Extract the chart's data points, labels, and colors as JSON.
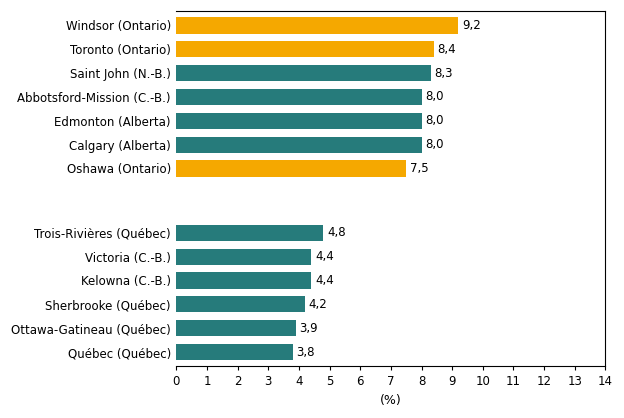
{
  "categories": [
    "Québec (Québec)",
    "Ottawa-Gatineau (Québec)",
    "Sherbrooke (Québec)",
    "Kelowna (C.-B.)",
    "Victoria (C.-B.)",
    "Trois-Rivières (Québec)",
    "",
    "Oshawa (Ontario)",
    "Calgary (Alberta)",
    "Edmonton (Alberta)",
    "Abbotsford-Mission (C.-B.)",
    "Saint John (N.-B.)",
    "Toronto (Ontario)",
    "Windsor (Ontario)"
  ],
  "values": [
    3.8,
    3.9,
    4.2,
    4.4,
    4.4,
    4.8,
    0,
    7.5,
    8.0,
    8.0,
    8.0,
    8.3,
    8.4,
    9.2
  ],
  "colors": [
    "#267b7b",
    "#267b7b",
    "#267b7b",
    "#267b7b",
    "#267b7b",
    "#267b7b",
    "#ffffff",
    "#f5a800",
    "#267b7b",
    "#267b7b",
    "#267b7b",
    "#267b7b",
    "#f5a800",
    "#f5a800"
  ],
  "labels": [
    "3,8",
    "3,9",
    "4,2",
    "4,4",
    "4,4",
    "4,8",
    "",
    "7,5",
    "8,0",
    "8,0",
    "8,0",
    "8,3",
    "8,4",
    "9,2"
  ],
  "xlim": [
    0,
    14
  ],
  "xticks": [
    0,
    1,
    2,
    3,
    4,
    5,
    6,
    7,
    8,
    9,
    10,
    11,
    12,
    13,
    14
  ],
  "xlabel": "(%)",
  "background_color": "#ffffff",
  "bar_height": 0.68,
  "label_fontsize": 8.5,
  "tick_fontsize": 8.5,
  "xlabel_fontsize": 9,
  "ylabel_fontsize": 9
}
